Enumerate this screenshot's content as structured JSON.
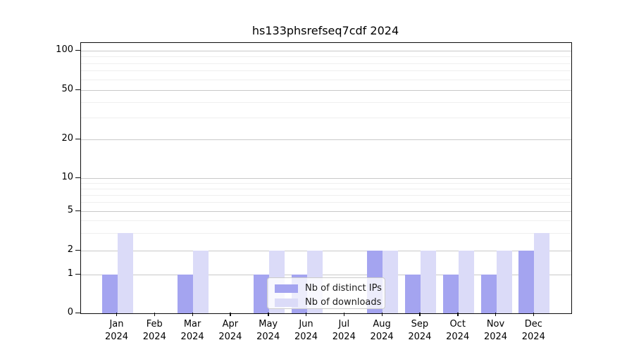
{
  "chart": {
    "title": "hs133phsrefseq7cdf 2024"
  },
  "chart_data": {
    "type": "bar",
    "title": "hs133phsrefseq7cdf 2024",
    "categories": [
      "Jan 2024",
      "Feb 2024",
      "Mar 2024",
      "Apr 2024",
      "May 2024",
      "Jun 2024",
      "Jul 2024",
      "Aug 2024",
      "Sep 2024",
      "Oct 2024",
      "Nov 2024",
      "Dec 2024"
    ],
    "months": [
      "Jan",
      "Feb",
      "Mar",
      "Apr",
      "May",
      "Jun",
      "Jul",
      "Aug",
      "Sep",
      "Oct",
      "Nov",
      "Dec"
    ],
    "year": "2024",
    "series": [
      {
        "name": "Nb of distinct IPs",
        "color": "#a4a4f0",
        "values": [
          1,
          0,
          1,
          0,
          1,
          1,
          0,
          2,
          1,
          1,
          1,
          2
        ]
      },
      {
        "name": "Nb of downloads",
        "color": "#dbdbf8",
        "values": [
          3,
          0,
          2,
          0,
          2,
          2,
          0,
          2,
          2,
          2,
          2,
          3
        ]
      }
    ],
    "xlabel": "",
    "ylabel": "",
    "yticks": [
      100,
      50,
      20,
      10,
      5,
      2,
      1,
      0
    ],
    "minor_yticks": [
      3,
      4,
      6,
      7,
      8,
      9,
      30,
      40,
      60,
      70,
      80,
      90
    ],
    "yscale": "symlog",
    "ylim": [
      0,
      140
    ],
    "grid": true,
    "legend_position": "lower center",
    "axis_color": "#0d0d0d",
    "major_grid_color": "#c9c9c9",
    "minor_grid_color": "#efefef"
  }
}
